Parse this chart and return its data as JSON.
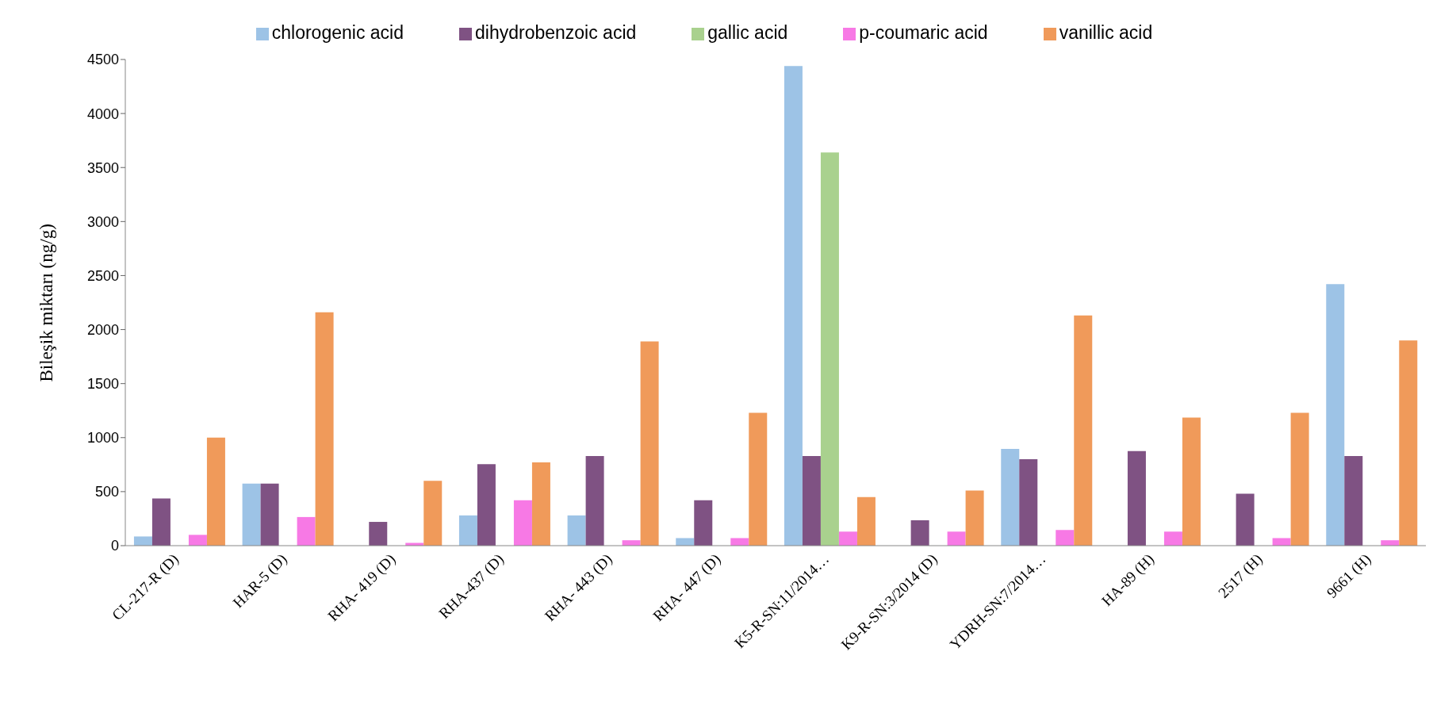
{
  "chart_data": {
    "type": "bar",
    "ylabel": "Bileşik miktarı (ng/g)",
    "categories": [
      "CL-217-R (D)",
      "HAR-5 (D)",
      "RHA- 419 (D)",
      "RHA-437 (D)",
      "RHA- 443 (D)",
      "RHA- 447 (D)",
      "K5-R-SN:11/2014…",
      "K9-R-SN:3/2014 (D)",
      "YDRH-SN:7/2014…",
      "HA-89 (H)",
      "2517 (H)",
      "9661 (H)"
    ],
    "series": [
      {
        "name": "chlorogenic acid",
        "color": "#9dc3e6",
        "values": [
          85,
          575,
          0,
          280,
          280,
          70,
          4440,
          0,
          895,
          0,
          0,
          2420
        ]
      },
      {
        "name": "dihydrobenzoic acid",
        "color": "#7f5283",
        "values": [
          437,
          575,
          220,
          755,
          830,
          420,
          830,
          235,
          800,
          875,
          480,
          830
        ]
      },
      {
        "name": "gallic acid",
        "color": "#a9d18e",
        "values": [
          0,
          0,
          0,
          0,
          0,
          0,
          3640,
          0,
          0,
          0,
          0,
          0
        ]
      },
      {
        "name": "p-coumaric acid",
        "color": "#f779e5",
        "values": [
          100,
          265,
          25,
          420,
          50,
          70,
          130,
          130,
          145,
          130,
          70,
          50
        ]
      },
      {
        "name": "vanillic acid",
        "color": "#f09a5a",
        "values": [
          1000,
          2160,
          600,
          770,
          1890,
          1230,
          450,
          510,
          2130,
          1185,
          1230,
          1900
        ]
      }
    ],
    "ylim": [
      0,
      4500
    ],
    "yticks": [
      0,
      500,
      1000,
      1500,
      2000,
      2500,
      3000,
      3500,
      4000,
      4500
    ],
    "grid": false,
    "legend": "top"
  }
}
